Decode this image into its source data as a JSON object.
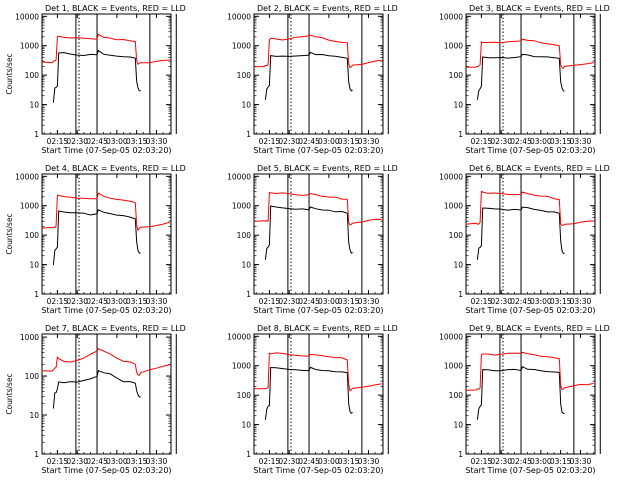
{
  "figure": {
    "x_label": "Start Time (07-Sep-05 02:03:20)",
    "y_label": "Counts/sec",
    "x_tick_labels": [
      "02:15",
      "02:30",
      "02:45",
      "03:00",
      "03:15",
      "03:30"
    ],
    "y_tick_labels": [
      "1",
      "10",
      "100",
      "1000",
      "10000"
    ],
    "colors": {
      "events": "#000000",
      "lld": "#ff0000",
      "background": "#ffffff"
    }
  },
  "chart_data": [
    {
      "type": "line",
      "title": "Det 1, BLACK = Events, RED = LLD",
      "xlabel": "Start Time (07-Sep-05 02:03:20)",
      "ylabel": "Counts/sec",
      "y_scale": "log",
      "ylim": [
        1,
        12000
      ],
      "xlim": [
        "02:03:20",
        "03:41:00"
      ],
      "x": [
        "02:03",
        "02:11",
        "02:12",
        "02:13",
        "02:14",
        "02:15",
        "02:16",
        "02:20",
        "02:25",
        "02:30",
        "02:35",
        "02:40",
        "02:45",
        "02:46",
        "02:50",
        "02:55",
        "03:00",
        "03:05",
        "03:10",
        "03:14",
        "03:15",
        "03:16",
        "03:17",
        "03:18",
        "03:25",
        "03:30",
        "03:35",
        "03:40"
      ],
      "series": [
        {
          "name": "Events",
          "values": [
            null,
            null,
            12,
            35,
            38,
            40,
            600,
            560,
            530,
            510,
            490,
            480,
            470,
            680,
            520,
            470,
            440,
            410,
            400,
            380,
            60,
            35,
            30,
            30,
            null,
            null,
            null,
            null
          ]
        },
        {
          "name": "LLD",
          "values": [
            290,
            280,
            290,
            300,
            330,
            2100,
            2000,
            1900,
            1850,
            1800,
            1750,
            1700,
            1750,
            2400,
            1900,
            1750,
            1650,
            1550,
            1450,
            1400,
            320,
            240,
            245,
            250,
            260,
            280,
            310,
            330
          ]
        }
      ]
    },
    {
      "type": "line",
      "title": "Det 2, BLACK = Events, RED = LLD",
      "xlabel": "Start Time (07-Sep-05 02:03:20)",
      "ylabel": "Counts/sec",
      "y_scale": "log",
      "ylim": [
        1,
        12000
      ],
      "xlim": [
        "02:03:20",
        "03:41:00"
      ],
      "x": [
        "02:03",
        "02:11",
        "02:12",
        "02:13",
        "02:14",
        "02:15",
        "02:16",
        "02:20",
        "02:25",
        "02:30",
        "02:35",
        "02:40",
        "02:45",
        "02:46",
        "02:50",
        "02:55",
        "03:00",
        "03:05",
        "03:10",
        "03:14",
        "03:15",
        "03:16",
        "03:17",
        "03:18",
        "03:25",
        "03:30",
        "03:35",
        "03:40"
      ],
      "series": [
        {
          "name": "Events",
          "values": [
            null,
            null,
            15,
            35,
            40,
            45,
            450,
            430,
            420,
            410,
            440,
            450,
            460,
            600,
            520,
            480,
            450,
            420,
            390,
            370,
            60,
            35,
            30,
            30,
            null,
            null,
            null,
            null
          ]
        },
        {
          "name": "LLD",
          "values": [
            200,
            200,
            210,
            220,
            240,
            1700,
            1800,
            1700,
            1650,
            1700,
            1900,
            2000,
            2100,
            2400,
            2000,
            1800,
            1600,
            1450,
            1300,
            1200,
            250,
            180,
            190,
            210,
            240,
            260,
            300,
            320
          ]
        }
      ]
    },
    {
      "type": "line",
      "title": "Det 3, BLACK = Events, RED = LLD",
      "xlabel": "Start Time (07-Sep-05 02:03:20)",
      "ylabel": "Counts/sec",
      "y_scale": "log",
      "ylim": [
        1,
        12000
      ],
      "xlim": [
        "02:03:20",
        "03:41:00"
      ],
      "x": [
        "02:03",
        "02:11",
        "02:12",
        "02:13",
        "02:14",
        "02:15",
        "02:16",
        "02:20",
        "02:25",
        "02:30",
        "02:35",
        "02:40",
        "02:45",
        "02:46",
        "02:50",
        "02:55",
        "03:00",
        "03:05",
        "03:10",
        "03:14",
        "03:15",
        "03:16",
        "03:17",
        "03:18",
        "03:25",
        "03:30",
        "03:35",
        "03:40"
      ],
      "series": [
        {
          "name": "Events",
          "values": [
            null,
            null,
            15,
            30,
            35,
            40,
            420,
            400,
            390,
            380,
            390,
            400,
            410,
            520,
            470,
            440,
            420,
            400,
            380,
            360,
            60,
            35,
            30,
            30,
            null,
            null,
            null,
            null
          ]
        },
        {
          "name": "LLD",
          "values": [
            190,
            190,
            195,
            200,
            220,
            1300,
            1350,
            1300,
            1280,
            1300,
            1350,
            1400,
            1450,
            1700,
            1500,
            1400,
            1300,
            1200,
            1100,
            1000,
            230,
            170,
            175,
            190,
            210,
            230,
            250,
            270
          ]
        }
      ]
    },
    {
      "type": "line",
      "title": "Det 4, BLACK = Events, RED = LLD",
      "xlabel": "Start Time (07-Sep-05 02:03:20)",
      "ylabel": "Counts/sec",
      "y_scale": "log",
      "ylim": [
        1,
        12000
      ],
      "xlim": [
        "02:03:20",
        "03:41:00"
      ],
      "x": [
        "02:03",
        "02:11",
        "02:12",
        "02:13",
        "02:14",
        "02:15",
        "02:16",
        "02:20",
        "02:25",
        "02:30",
        "02:35",
        "02:40",
        "02:45",
        "02:46",
        "02:50",
        "02:55",
        "03:00",
        "03:05",
        "03:10",
        "03:14",
        "03:15",
        "03:16",
        "03:17",
        "03:18",
        "03:25",
        "03:30",
        "03:35",
        "03:40"
      ],
      "series": [
        {
          "name": "Events",
          "values": [
            null,
            null,
            10,
            30,
            35,
            40,
            700,
            650,
            600,
            560,
            530,
            500,
            520,
            750,
            600,
            530,
            480,
            440,
            400,
            380,
            60,
            30,
            25,
            25,
            null,
            null,
            null,
            null
          ]
        },
        {
          "name": "LLD",
          "values": [
            180,
            180,
            185,
            190,
            210,
            2300,
            2200,
            2100,
            2000,
            1900,
            1800,
            1750,
            1800,
            2600,
            2100,
            1900,
            1700,
            1550,
            1450,
            1350,
            230,
            150,
            160,
            180,
            200,
            220,
            250,
            280
          ]
        }
      ]
    },
    {
      "type": "line",
      "title": "Det 5, BLACK = Events, RED = LLD",
      "xlabel": "Start Time (07-Sep-05 02:03:20)",
      "ylabel": "Counts/sec",
      "y_scale": "log",
      "ylim": [
        1,
        12000
      ],
      "xlim": [
        "02:03:20",
        "03:41:00"
      ],
      "x": [
        "02:03",
        "02:11",
        "02:12",
        "02:13",
        "02:14",
        "02:15",
        "02:16",
        "02:20",
        "02:25",
        "02:30",
        "02:35",
        "02:40",
        "02:45",
        "02:46",
        "02:50",
        "02:55",
        "03:00",
        "03:05",
        "03:10",
        "03:14",
        "03:15",
        "03:16",
        "03:17",
        "03:18",
        "03:25",
        "03:30",
        "03:35",
        "03:40"
      ],
      "series": [
        {
          "name": "Events",
          "values": [
            null,
            null,
            15,
            35,
            40,
            45,
            950,
            880,
            820,
            780,
            760,
            740,
            720,
            950,
            820,
            760,
            710,
            660,
            620,
            580,
            60,
            30,
            25,
            25,
            null,
            null,
            null,
            null
          ]
        },
        {
          "name": "LLD",
          "values": [
            300,
            300,
            300,
            310,
            320,
            2900,
            2800,
            2700,
            2600,
            2500,
            2400,
            2300,
            2250,
            2700,
            2400,
            2200,
            2050,
            1900,
            1750,
            1650,
            280,
            220,
            230,
            250,
            270,
            300,
            330,
            350
          ]
        }
      ]
    },
    {
      "type": "line",
      "title": "Det 6, BLACK = Events, RED = LLD",
      "xlabel": "Start Time (07-Sep-05 02:03:20)",
      "ylabel": "Counts/sec",
      "y_scale": "log",
      "ylim": [
        1,
        12000
      ],
      "xlim": [
        "02:03:20",
        "03:41:00"
      ],
      "x": [
        "02:03",
        "02:11",
        "02:12",
        "02:13",
        "02:14",
        "02:15",
        "02:16",
        "02:20",
        "02:25",
        "02:30",
        "02:35",
        "02:40",
        "02:45",
        "02:46",
        "02:50",
        "02:55",
        "03:00",
        "03:05",
        "03:10",
        "03:14",
        "03:15",
        "03:16",
        "03:17",
        "03:18",
        "03:25",
        "03:30",
        "03:35",
        "03:40"
      ],
      "series": [
        {
          "name": "Events",
          "values": [
            null,
            null,
            15,
            35,
            40,
            45,
            850,
            820,
            790,
            760,
            740,
            730,
            720,
            950,
            820,
            760,
            700,
            650,
            600,
            560,
            60,
            30,
            25,
            25,
            null,
            null,
            null,
            null
          ]
        },
        {
          "name": "LLD",
          "values": [
            240,
            240,
            245,
            250,
            270,
            2900,
            2800,
            2750,
            2700,
            2600,
            2500,
            2450,
            2400,
            2900,
            2600,
            2400,
            2200,
            2000,
            1850,
            1700,
            260,
            210,
            220,
            230,
            250,
            270,
            290,
            310
          ]
        }
      ]
    },
    {
      "type": "line",
      "title": "Det 7, BLACK = Events, RED = LLD",
      "xlabel": "Start Time (07-Sep-05 02:03:20)",
      "ylabel": "Counts/sec",
      "y_scale": "log",
      "ylim": [
        1,
        1200
      ],
      "xlim": [
        "02:03:20",
        "03:41:00"
      ],
      "x": [
        "02:03",
        "02:11",
        "02:12",
        "02:13",
        "02:14",
        "02:15",
        "02:16",
        "02:20",
        "02:25",
        "02:30",
        "02:35",
        "02:40",
        "02:45",
        "02:46",
        "02:50",
        "02:55",
        "03:00",
        "03:05",
        "03:10",
        "03:14",
        "03:15",
        "03:16",
        "03:17",
        "03:18",
        "03:25",
        "03:30",
        "03:35",
        "03:40"
      ],
      "series": [
        {
          "name": "Events",
          "values": [
            null,
            null,
            15,
            35,
            40,
            45,
            75,
            70,
            68,
            70,
            75,
            85,
            100,
            130,
            120,
            110,
            90,
            75,
            70,
            65,
            40,
            35,
            30,
            30,
            null,
            null,
            null,
            null
          ]
        },
        {
          "name": "LLD",
          "values": [
            140,
            140,
            150,
            160,
            170,
            300,
            280,
            250,
            240,
            260,
            300,
            380,
            450,
            480,
            440,
            380,
            300,
            250,
            220,
            200,
            130,
            110,
            110,
            120,
            140,
            160,
            180,
            200
          ]
        }
      ]
    },
    {
      "type": "line",
      "title": "Det 8, BLACK = Events, RED = LLD",
      "xlabel": "Start Time (07-Sep-05 02:03:20)",
      "ylabel": "Counts/sec",
      "y_scale": "log",
      "ylim": [
        1,
        12000
      ],
      "xlim": [
        "02:03:20",
        "03:41:00"
      ],
      "x": [
        "02:03",
        "02:11",
        "02:12",
        "02:13",
        "02:14",
        "02:15",
        "02:16",
        "02:20",
        "02:25",
        "02:30",
        "02:35",
        "02:40",
        "02:45",
        "02:46",
        "02:50",
        "02:55",
        "03:00",
        "03:05",
        "03:10",
        "03:14",
        "03:15",
        "03:16",
        "03:17",
        "03:18",
        "03:25",
        "03:30",
        "03:35",
        "03:40"
      ],
      "series": [
        {
          "name": "Events",
          "values": [
            null,
            null,
            15,
            35,
            40,
            45,
            850,
            820,
            790,
            760,
            740,
            720,
            700,
            850,
            760,
            720,
            690,
            650,
            600,
            560,
            50,
            28,
            25,
            25,
            null,
            null,
            null,
            null
          ]
        },
        {
          "name": "LLD",
          "values": [
            170,
            170,
            175,
            180,
            190,
            2700,
            2650,
            2600,
            2550,
            2500,
            2400,
            2300,
            2250,
            2500,
            2350,
            2250,
            2100,
            1950,
            1800,
            1650,
            250,
            140,
            150,
            170,
            190,
            210,
            230,
            250
          ]
        }
      ]
    },
    {
      "type": "line",
      "title": "Det 9, BLACK = Events, RED = LLD",
      "xlabel": "Start Time (07-Sep-05 02:03:20)",
      "ylabel": "Counts/sec",
      "y_scale": "log",
      "ylim": [
        1,
        12000
      ],
      "xlim": [
        "02:03:20",
        "03:41:00"
      ],
      "x": [
        "02:03",
        "02:11",
        "02:12",
        "02:13",
        "02:14",
        "02:15",
        "02:16",
        "02:20",
        "02:25",
        "02:30",
        "02:35",
        "02:40",
        "02:45",
        "02:46",
        "02:50",
        "02:55",
        "03:00",
        "03:05",
        "03:10",
        "03:14",
        "03:15",
        "03:16",
        "03:17",
        "03:18",
        "03:25",
        "03:30",
        "03:35",
        "03:40"
      ],
      "series": [
        {
          "name": "Events",
          "values": [
            null,
            null,
            15,
            35,
            40,
            45,
            750,
            720,
            700,
            690,
            700,
            710,
            720,
            900,
            800,
            740,
            690,
            650,
            600,
            560,
            50,
            28,
            25,
            25,
            null,
            null,
            null,
            null
          ]
        },
        {
          "name": "LLD",
          "values": [
            150,
            150,
            155,
            160,
            170,
            2500,
            2450,
            2400,
            2350,
            2400,
            2500,
            2550,
            2600,
            2800,
            2600,
            2400,
            2200,
            2000,
            1850,
            1700,
            230,
            150,
            160,
            180,
            200,
            220,
            240,
            260
          ]
        }
      ]
    }
  ]
}
